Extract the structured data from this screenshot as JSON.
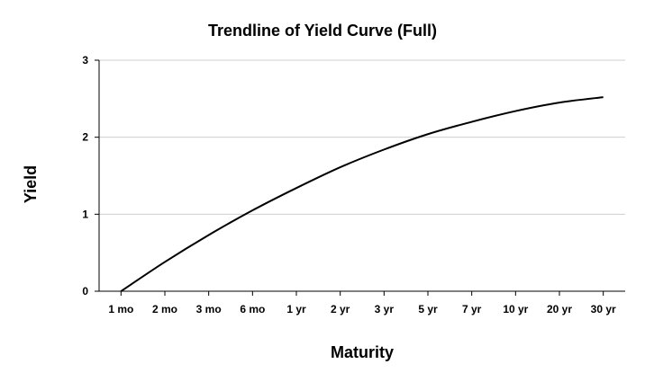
{
  "chart_data": {
    "type": "line",
    "title": "Trendline of Yield Curve (Full)",
    "xlabel": "Maturity",
    "ylabel": "Yield",
    "categories": [
      "1 mo",
      "2 mo",
      "3 mo",
      "6 mo",
      "1 yr",
      "2 yr",
      "3 yr",
      "5 yr",
      "7 yr",
      "10 yr",
      "20 yr",
      "30 yr"
    ],
    "ylim": [
      0,
      3
    ],
    "yticks": [
      "0",
      "1",
      "2",
      "3"
    ],
    "grid": true,
    "legend": "none",
    "series": [
      {
        "values": [
          0.0,
          0.38,
          0.73,
          1.05,
          1.34,
          1.61,
          1.84,
          2.04,
          2.2,
          2.34,
          2.45,
          2.52
        ],
        "color": "#000000"
      }
    ]
  }
}
